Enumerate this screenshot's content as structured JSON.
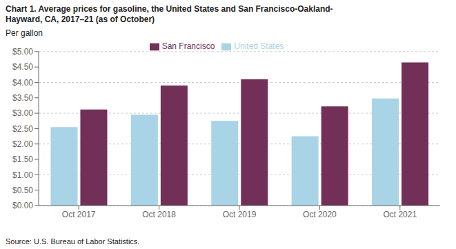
{
  "chart_data": {
    "type": "bar",
    "title": "Chart 1. Average prices for gasoline, the United States and San Francisco-Oakland-\nHayward, CA, 2017–21 (as of October)",
    "ylabel": "Per gallon",
    "source": "Source: U.S. Bureau of Labor Statistics.",
    "categories": [
      "Oct 2017",
      "Oct 2018",
      "Oct 2019",
      "Oct 2020",
      "Oct 2021"
    ],
    "series": [
      {
        "name": "United States",
        "color": "#a8d4e6",
        "values": [
          2.55,
          2.95,
          2.75,
          2.25,
          3.48
        ]
      },
      {
        "name": "San Francisco",
        "color": "#722f57",
        "values": [
          3.12,
          3.9,
          4.1,
          3.22,
          4.65
        ]
      }
    ],
    "ylim": [
      0,
      5.0
    ],
    "yticks": [
      {
        "value": 0.0,
        "label": "$0.00"
      },
      {
        "value": 0.5,
        "label": "$0.50"
      },
      {
        "value": 1.0,
        "label": "$1.00"
      },
      {
        "value": 1.5,
        "label": "$1.50"
      },
      {
        "value": 2.0,
        "label": "$2.00"
      },
      {
        "value": 2.5,
        "label": "$2.50"
      },
      {
        "value": 3.0,
        "label": "$3.00"
      },
      {
        "value": 3.5,
        "label": "$3.50"
      },
      {
        "value": 4.0,
        "label": "$4.00"
      },
      {
        "value": 4.5,
        "label": "$4.50"
      },
      {
        "value": 5.0,
        "label": "$5.00"
      }
    ],
    "grid": true,
    "legend": "top"
  }
}
